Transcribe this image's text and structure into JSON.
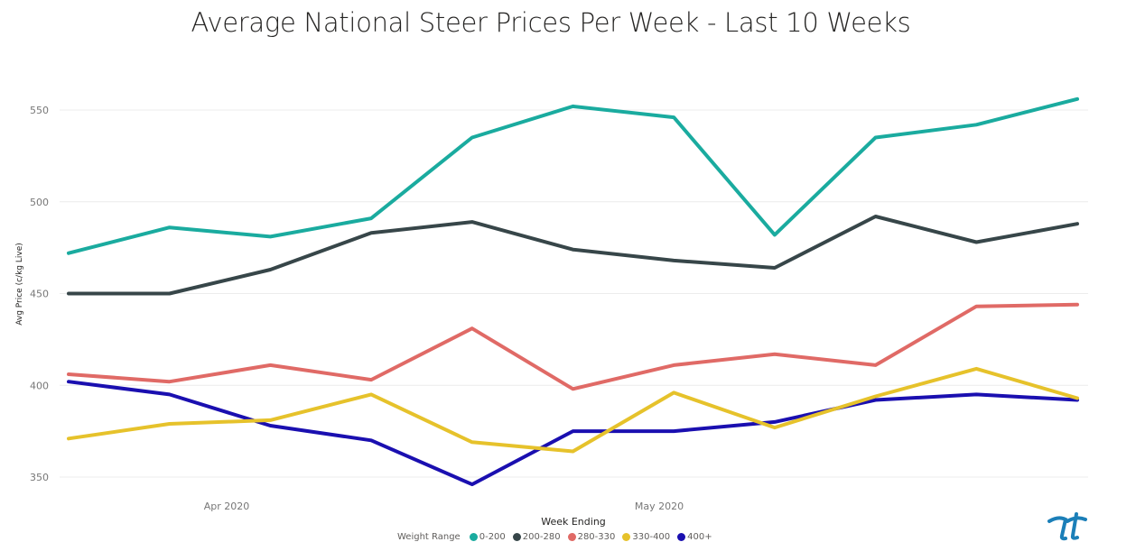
{
  "chart_data": {
    "type": "line",
    "title": "Average National Steer Prices Per Week - Last 10 Weeks",
    "xlabel": "Week Ending",
    "ylabel": "Avg Price (c/kg Live)",
    "x_tick_labels": [
      "Apr 2020",
      "May 2020"
    ],
    "y_ticks": [
      350,
      400,
      450,
      500,
      550
    ],
    "ylim": [
      340,
      570
    ],
    "grid": true,
    "legend": {
      "title": "Weight Range",
      "position": "bottom"
    },
    "series": [
      {
        "name": "0-200",
        "color": "#1aab9f",
        "values": [
          472,
          486,
          481,
          491,
          535,
          552,
          546,
          482,
          535,
          542,
          556
        ]
      },
      {
        "name": "200-280",
        "color": "#374649",
        "values": [
          450,
          450,
          463,
          483,
          489,
          474,
          468,
          464,
          492,
          478,
          488
        ]
      },
      {
        "name": "280-330",
        "color": "#e06a66",
        "values": [
          406,
          402,
          411,
          403,
          431,
          398,
          411,
          417,
          411,
          443,
          444
        ]
      },
      {
        "name": "330-400",
        "color": "#e6c22b",
        "values": [
          371,
          379,
          381,
          395,
          369,
          364,
          396,
          377,
          394,
          409,
          393
        ]
      },
      {
        "name": "400+",
        "color": "#1a0fb0",
        "values": [
          402,
          395,
          378,
          370,
          346,
          375,
          375,
          380,
          392,
          395,
          392
        ]
      }
    ]
  }
}
